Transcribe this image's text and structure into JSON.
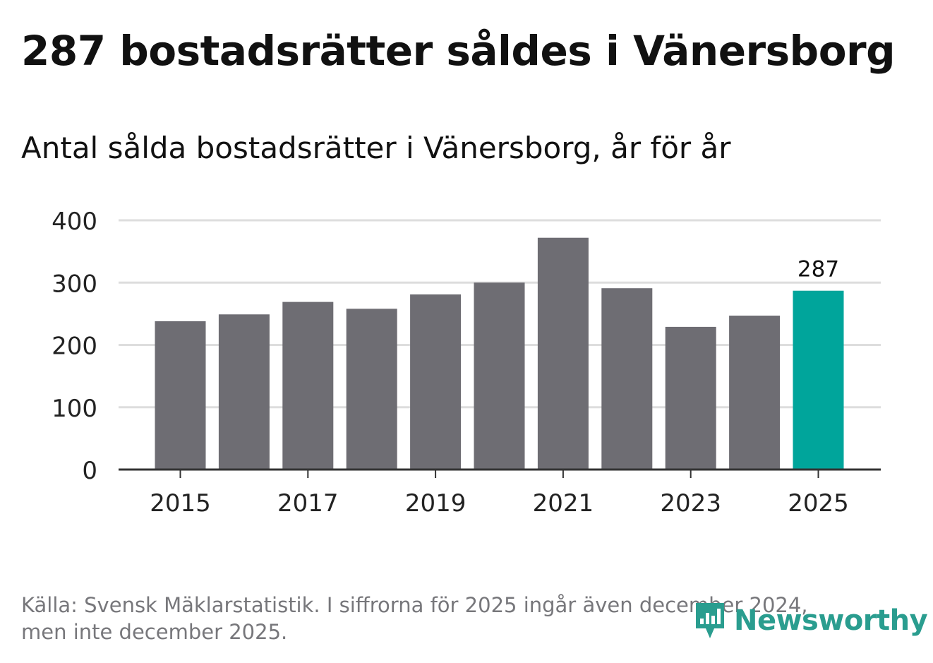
{
  "title": "287 bostadsrätter såldes i Vänersborg",
  "subtitle": "Antal sålda bostadsrätter i Vänersborg, år för år",
  "footer": {
    "line1": "Källa: Svensk Mäklarstatistik. I siffrorna för 2025 ingår även december 2024,",
    "line2": "men inte december 2025."
  },
  "logo": {
    "text": "Newsworthy",
    "icon": "newsworthy-chart-bubble-icon"
  },
  "colors": {
    "bar": "#6e6d73",
    "highlight": "#00a59b",
    "grid": "#dddddd",
    "axis": "#333333"
  },
  "chart_data": {
    "type": "bar",
    "categories": [
      "2015",
      "2016",
      "2017",
      "2018",
      "2019",
      "2020",
      "2021",
      "2022",
      "2023",
      "2024",
      "2025"
    ],
    "values": [
      238,
      249,
      269,
      258,
      281,
      300,
      372,
      291,
      229,
      247,
      287
    ],
    "highlight_index": 10,
    "data_labels": [
      {
        "index": 10,
        "text": "287"
      }
    ],
    "xticks": [
      "2015",
      "2017",
      "2019",
      "2021",
      "2023",
      "2025"
    ],
    "yticks": [
      0,
      100,
      200,
      300,
      400
    ],
    "ylim": [
      0,
      400
    ],
    "grid": true,
    "title": "287 bostadsrätter såldes i Vänersborg",
    "xlabel": "",
    "ylabel": ""
  }
}
